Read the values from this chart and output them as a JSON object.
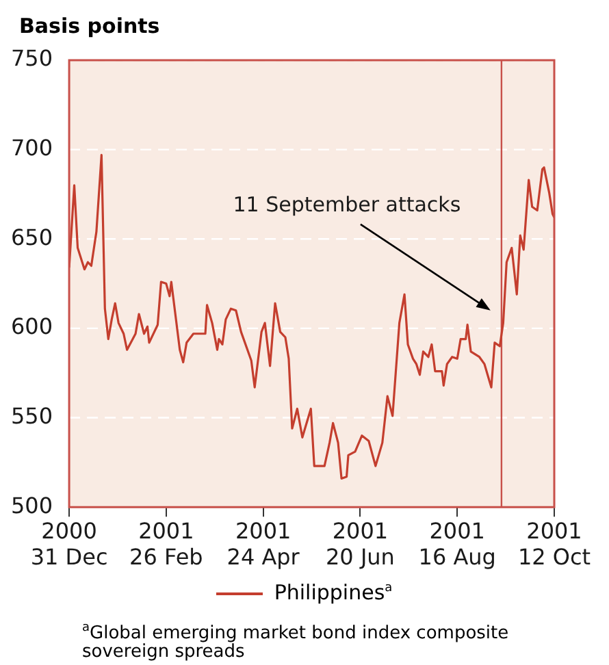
{
  "chart_data": {
    "type": "line",
    "ylabel": "Basis points",
    "x": [
      "2000-12-31",
      "2001-01-03",
      "2001-01-05",
      "2001-01-09",
      "2001-01-11",
      "2001-01-13",
      "2001-01-16",
      "2001-01-19",
      "2001-01-21",
      "2001-01-23",
      "2001-01-25",
      "2001-01-27",
      "2001-01-29",
      "2001-02-01",
      "2001-02-03",
      "2001-02-08",
      "2001-02-10",
      "2001-02-13",
      "2001-02-15",
      "2001-02-16",
      "2001-02-21",
      "2001-02-23",
      "2001-02-26",
      "2001-02-28",
      "2001-03-01",
      "2001-03-06",
      "2001-03-08",
      "2001-03-10",
      "2001-03-14",
      "2001-03-21",
      "2001-03-22",
      "2001-03-25",
      "2001-03-28",
      "2001-03-29",
      "2001-03-31",
      "2001-04-02",
      "2001-04-05",
      "2001-04-08",
      "2001-04-11",
      "2001-04-17",
      "2001-04-19",
      "2001-04-23",
      "2001-04-25",
      "2001-04-28",
      "2001-05-01",
      "2001-05-04",
      "2001-05-07",
      "2001-05-09",
      "2001-05-11",
      "2001-05-14",
      "2001-05-17",
      "2001-05-22",
      "2001-05-24",
      "2001-05-30",
      "2001-06-02",
      "2001-06-04",
      "2001-06-07",
      "2001-06-09",
      "2001-06-12",
      "2001-06-13",
      "2001-06-17",
      "2001-06-21",
      "2001-06-25",
      "2001-06-29",
      "2001-07-03",
      "2001-07-06",
      "2001-07-09",
      "2001-07-13",
      "2001-07-16",
      "2001-07-18",
      "2001-07-21",
      "2001-07-23",
      "2001-07-25",
      "2001-07-27",
      "2001-07-30",
      "2001-08-01",
      "2001-08-03",
      "2001-08-07",
      "2001-08-08",
      "2001-08-10",
      "2001-08-13",
      "2001-08-16",
      "2001-08-18",
      "2001-08-21",
      "2001-08-22",
      "2001-08-24",
      "2001-08-29",
      "2001-09-01",
      "2001-09-05",
      "2001-09-07",
      "2001-09-10",
      "2001-09-12",
      "2001-09-14",
      "2001-09-17",
      "2001-09-20",
      "2001-09-22",
      "2001-09-24",
      "2001-09-27",
      "2001-09-29",
      "2001-10-02",
      "2001-10-05",
      "2001-10-06",
      "2001-10-09",
      "2001-10-11",
      "2001-10-12"
    ],
    "series": [
      {
        "name": "Philippines$^{a}$",
        "color": "#c43e2e",
        "values": [
          634,
          680,
          645,
          633,
          637,
          635,
          654,
          697,
          611,
          594,
          605,
          614,
          603,
          597,
          588,
          597,
          608,
          597,
          601,
          592,
          602,
          626,
          625,
          618,
          626,
          588,
          581,
          592,
          597,
          597,
          613,
          603,
          588,
          594,
          591,
          605,
          611,
          610,
          598,
          582,
          567,
          598,
          603,
          579,
          614,
          598,
          595,
          583,
          544,
          555,
          539,
          555,
          523,
          523,
          536,
          547,
          536,
          516,
          517,
          529,
          531,
          540,
          537,
          523,
          536,
          562,
          551,
          603,
          619,
          591,
          583,
          580,
          574,
          587,
          584,
          591,
          576,
          576,
          568,
          580,
          584,
          583,
          594,
          594,
          602,
          587,
          584,
          580,
          567,
          592,
          590,
          603,
          637,
          645,
          619,
          652,
          644,
          683,
          668,
          666,
          689,
          690,
          676,
          664,
          662
        ]
      }
    ],
    "xlim": [
      "2000-12-31",
      "2001-10-12"
    ],
    "xticks": [
      {
        "value": "2000-12-31",
        "label": "2000\n31 Dec"
      },
      {
        "value": "2001-02-26",
        "label": "2001\n26 Feb"
      },
      {
        "value": "2001-04-24",
        "label": "2001\n24 Apr"
      },
      {
        "value": "2001-06-20",
        "label": "2001\n20 Jun"
      },
      {
        "value": "2001-08-16",
        "label": "2001\n16 Aug"
      },
      {
        "value": "2001-10-12",
        "label": "2001\n12 Oct"
      }
    ],
    "ylim": [
      500,
      750
    ],
    "yticks": [
      500,
      550,
      600,
      650,
      700,
      750
    ],
    "grid": "y",
    "legend": "bottom",
    "line_style": "solid",
    "marker": "none",
    "ref_lines": [
      {
        "axis": "x",
        "value": "2001-09-11",
        "color": "#c8504a",
        "label": "11 September attacks"
      }
    ],
    "annotations": [
      "$^{a}$Global emerging market bond index composite sovereign spreads"
    ]
  }
}
